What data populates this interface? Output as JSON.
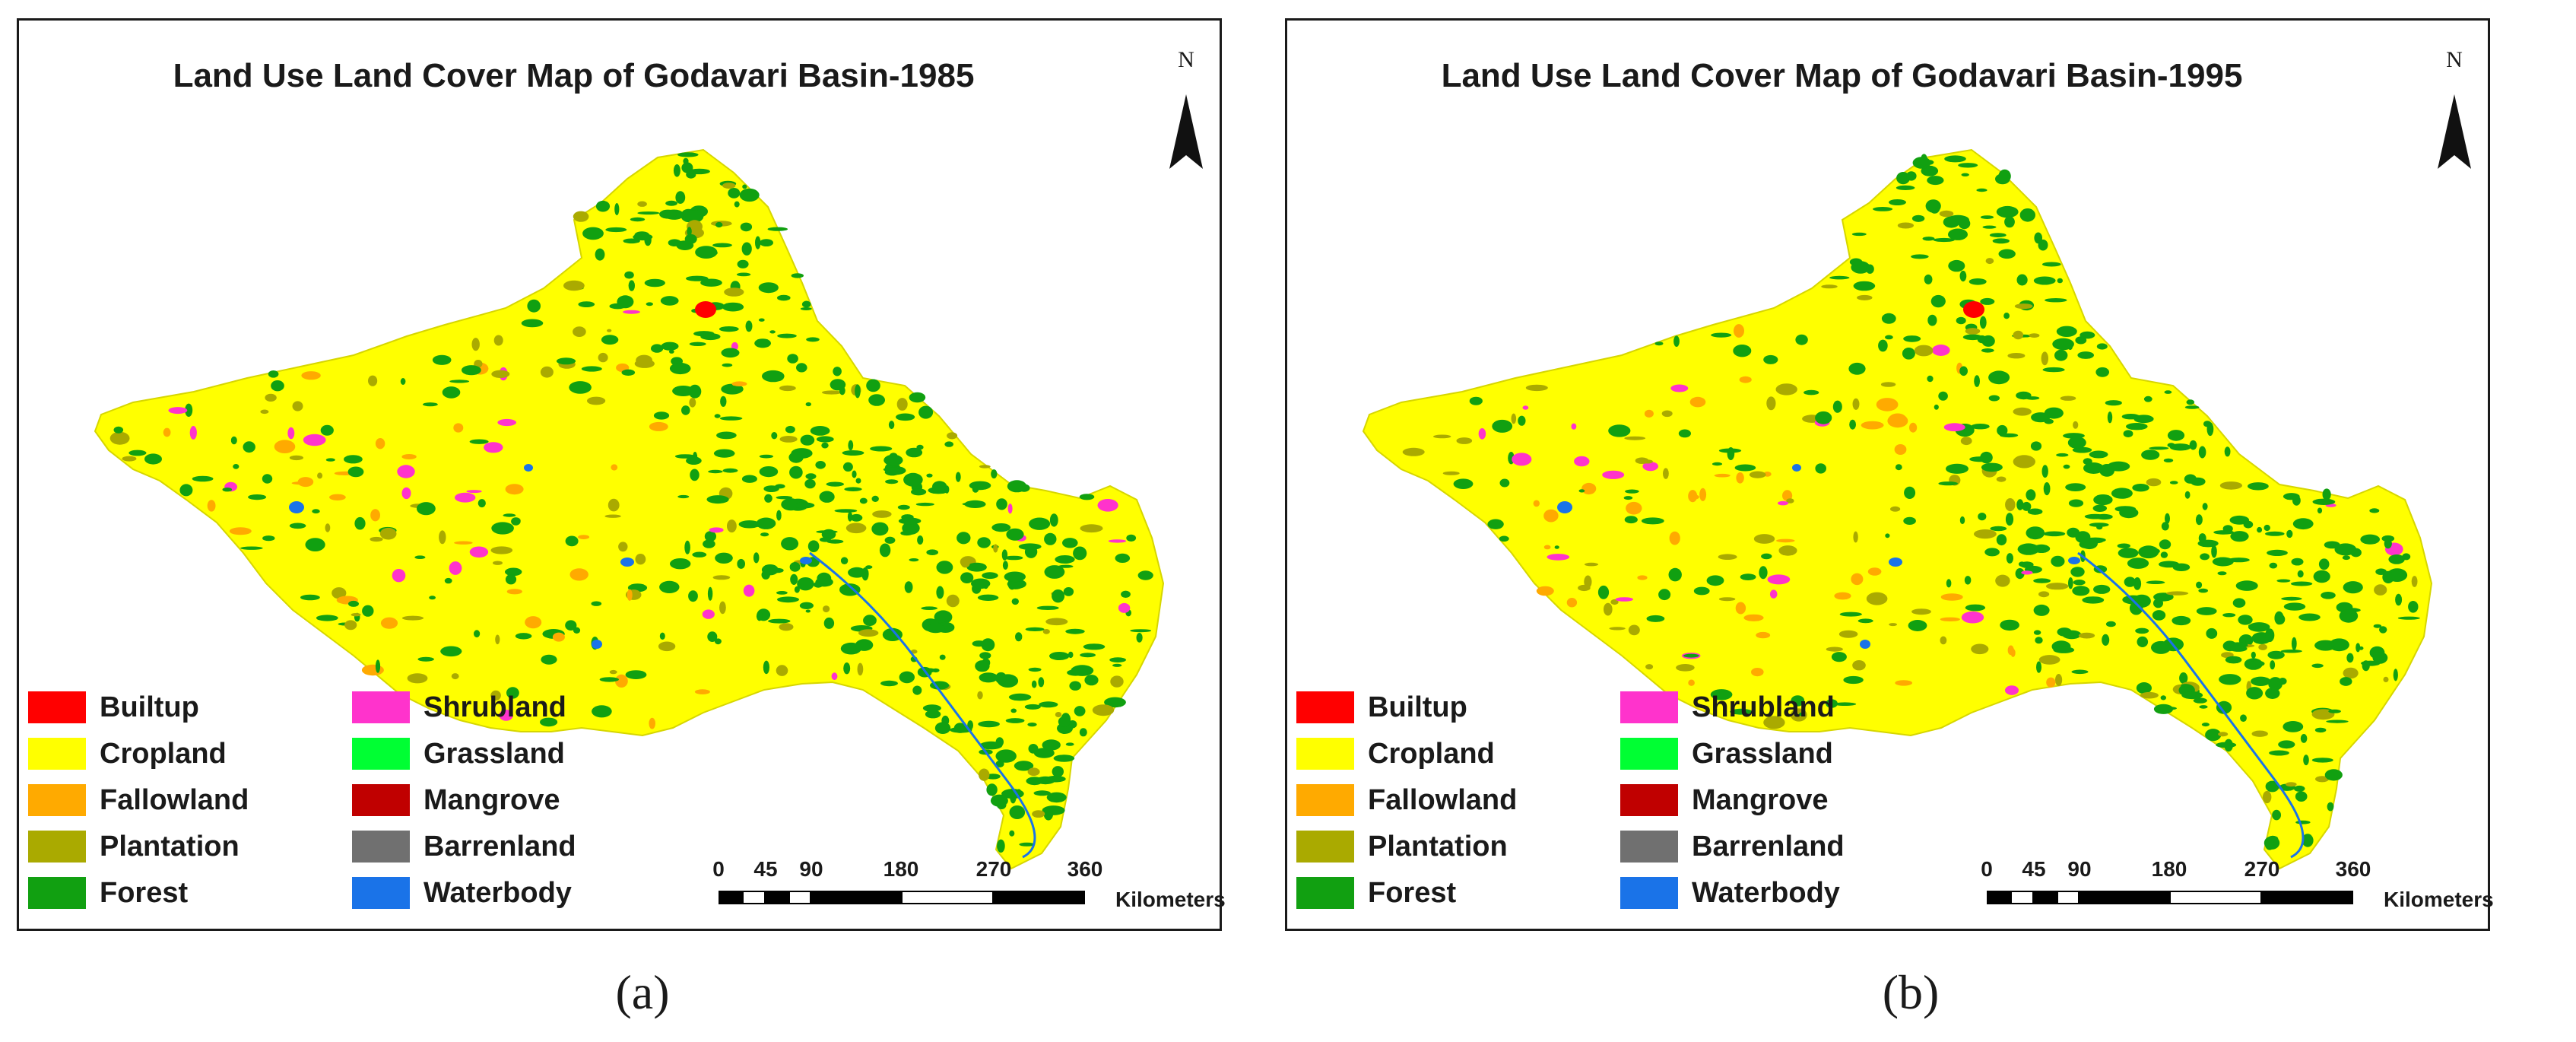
{
  "panels": [
    {
      "id": "a",
      "title": "Land Use Land Cover Map of Godavari Basin-1985",
      "caption": "(a)",
      "north_label": "N"
    },
    {
      "id": "b",
      "title": "Land Use Land Cover Map of Godavari Basin-1995",
      "caption": "(b)",
      "north_label": "N"
    }
  ],
  "legend": [
    {
      "label": "Builtup",
      "color": "#ff0000"
    },
    {
      "label": "Shrubland",
      "color": "#ff33cc"
    },
    {
      "label": "Cropland",
      "color": "#ffff00"
    },
    {
      "label": "Grassland",
      "color": "#00ff33"
    },
    {
      "label": "Fallowland",
      "color": "#ffaa00"
    },
    {
      "label": "Mangrove",
      "color": "#c00000"
    },
    {
      "label": "Plantation",
      "color": "#aaaa00"
    },
    {
      "label": "Barrenland",
      "color": "#707070"
    },
    {
      "label": "Forest",
      "color": "#11a011"
    },
    {
      "label": "Waterbody",
      "color": "#1a73e8"
    }
  ],
  "scalebar": {
    "ticks": [
      "0",
      "45",
      "90",
      "180",
      "270",
      "360"
    ],
    "units": "Kilometers"
  }
}
